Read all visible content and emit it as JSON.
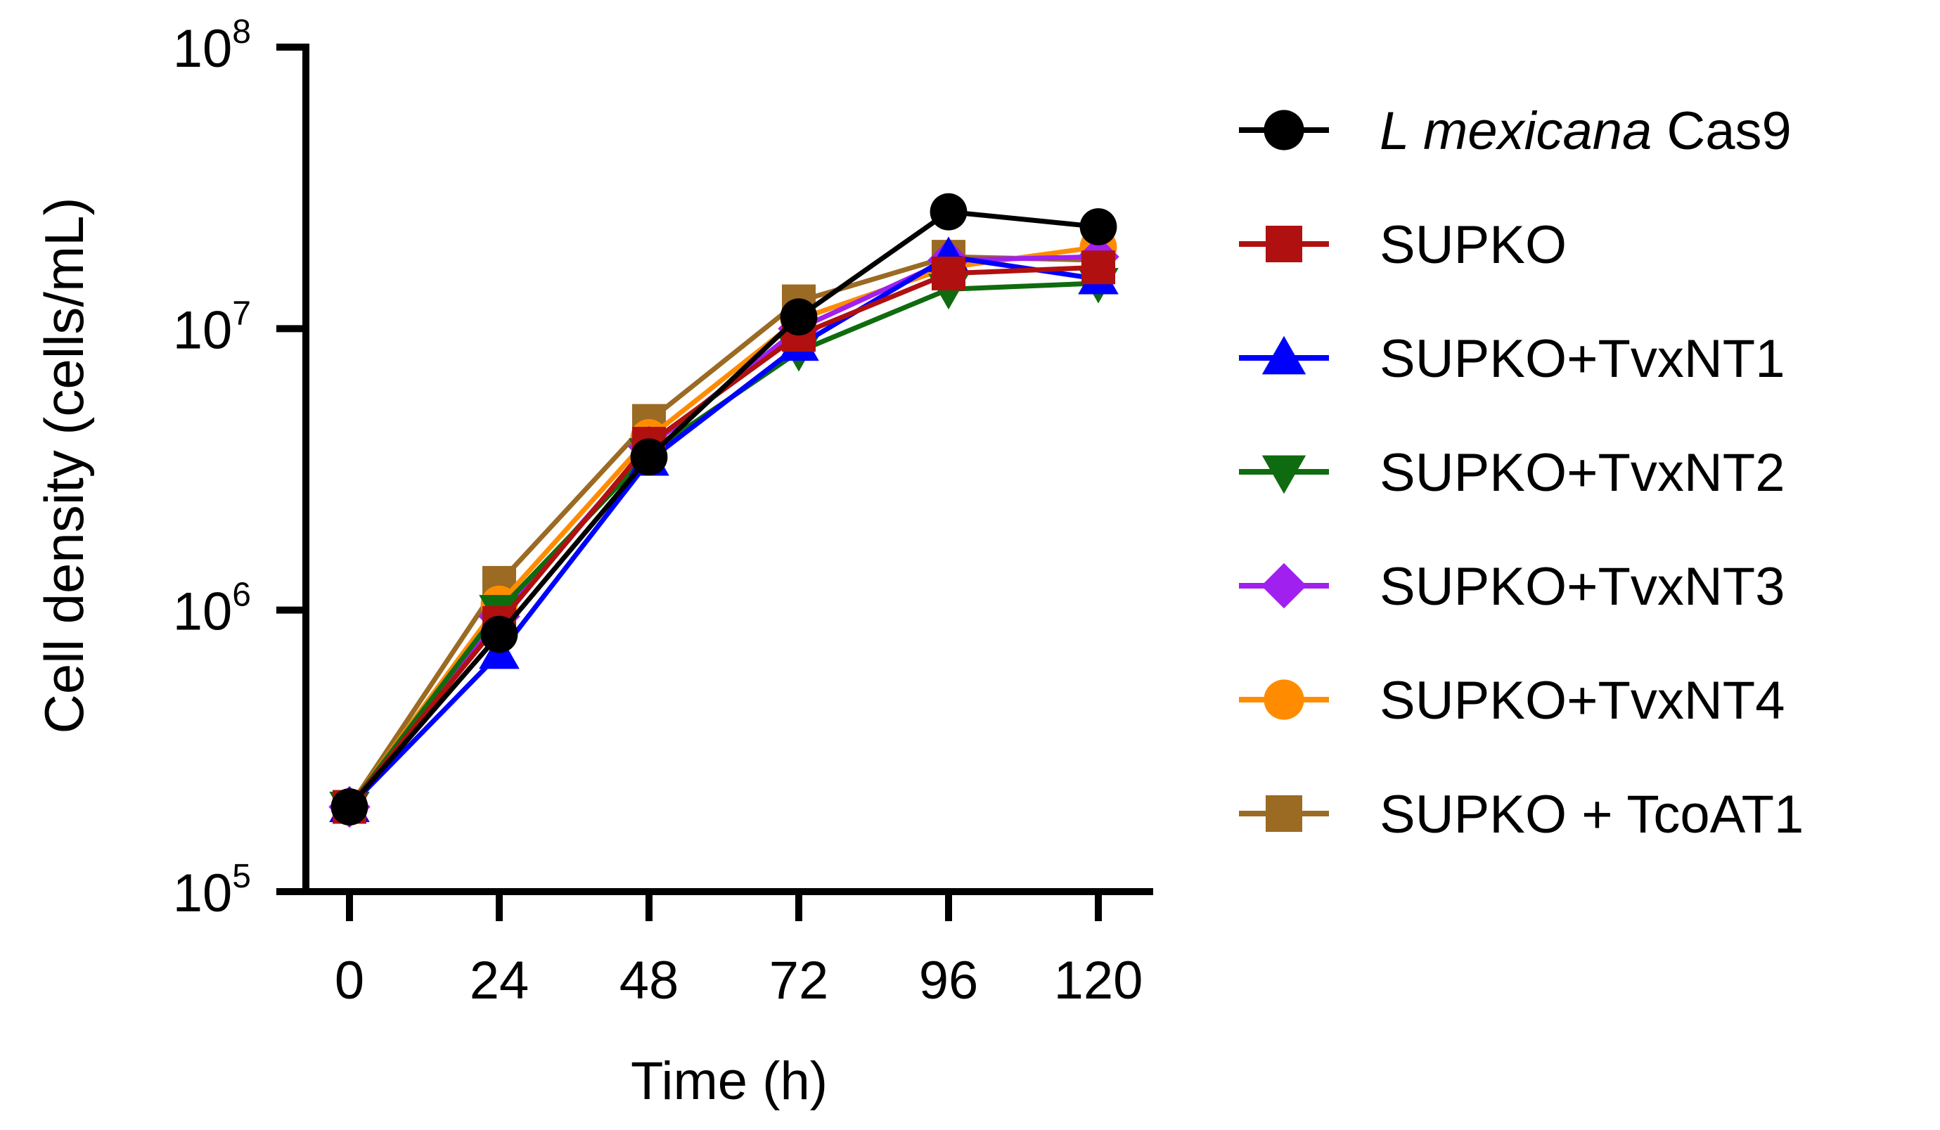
{
  "chart_data": {
    "type": "line",
    "title": "",
    "xlabel": "Time (h)",
    "ylabel": "Cell density (cells/mL)",
    "x": [
      0,
      24,
      48,
      72,
      96,
      120
    ],
    "x_tick_labels": [
      "0",
      "24",
      "48",
      "72",
      "96",
      "120"
    ],
    "y_scale": "log",
    "ylim": [
      100000,
      100000000
    ],
    "y_ticks": [
      {
        "value": 100000,
        "base": "10",
        "exp": "5"
      },
      {
        "value": 1000000,
        "base": "10",
        "exp": "6"
      },
      {
        "value": 10000000,
        "base": "10",
        "exp": "7"
      },
      {
        "value": 100000000,
        "base": "10",
        "exp": "8"
      }
    ],
    "legend_position": "right",
    "series": [
      {
        "name": "SUPKO + TcoAT1",
        "italic": "",
        "rest": "SUPKO + TcoAT1",
        "color": "#9B6A23",
        "marker": "square",
        "values": [
          200000,
          1250000,
          4700000,
          12500000,
          18000000,
          17500000
        ]
      },
      {
        "name": "SUPKO+TvxNT4",
        "italic": "",
        "rest": "SUPKO+TvxNT4",
        "color": "#FF8C00",
        "marker": "circle",
        "values": [
          200000,
          1050000,
          4100000,
          10800000,
          16500000,
          19500000
        ]
      },
      {
        "name": "SUPKO+TvxNT3",
        "italic": "",
        "rest": "SUPKO+TvxNT3",
        "color": "#A020F0",
        "marker": "diamond",
        "values": [
          200000,
          950000,
          3800000,
          10000000,
          17500000,
          18000000
        ]
      },
      {
        "name": "SUPKO+TvxNT2",
        "italic": "",
        "rest": "SUPKO+TvxNT2",
        "color": "#0F6B0F",
        "marker": "triangle-down",
        "values": [
          200000,
          1000000,
          3600000,
          8300000,
          13800000,
          14500000
        ]
      },
      {
        "name": "SUPKO+TvxNT1",
        "italic": "",
        "rest": "SUPKO+TvxNT1",
        "color": "#0000FF",
        "marker": "triangle-up",
        "values": [
          200000,
          700000,
          3400000,
          8700000,
          18000000,
          15000000
        ]
      },
      {
        "name": "SUPKO",
        "italic": "",
        "rest": "SUPKO",
        "color": "#B01010",
        "marker": "square",
        "values": [
          200000,
          900000,
          3900000,
          9500000,
          15700000,
          16500000
        ]
      },
      {
        "name": "L mexicana Cas9",
        "italic": "L mexicana",
        "rest": " Cas9",
        "color": "#000000",
        "marker": "circle",
        "values": [
          200000,
          820000,
          3500000,
          11000000,
          26000000,
          23000000
        ]
      }
    ],
    "legend_order": [
      6,
      5,
      4,
      3,
      2,
      1,
      0
    ]
  }
}
